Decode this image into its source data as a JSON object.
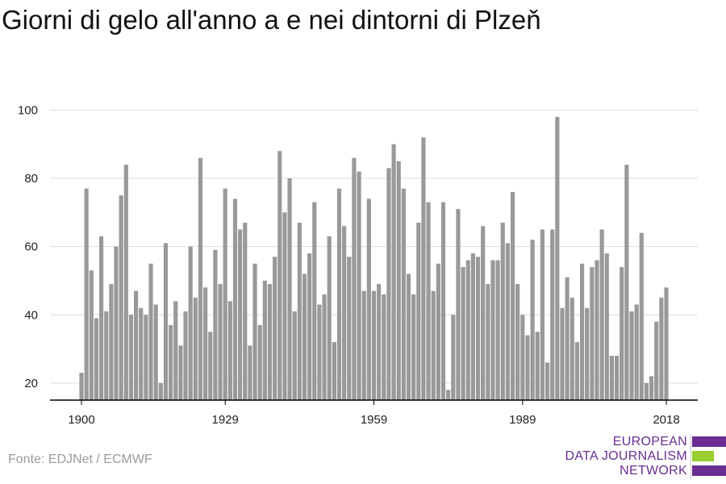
{
  "title": "Giorni di gelo all'anno a e nei dintorni di Plzeň",
  "source": "Fonte: EDJNet / ECMWF",
  "logo": {
    "line1": "EUROPEAN",
    "line2": "DATA JOURNALISM",
    "line3": "NETWORK",
    "color_primary": "#6a2d91",
    "color_accent": "#9acd32"
  },
  "colors": {
    "bar": "#999999",
    "grid": "#dddddd",
    "axis": "#000000"
  },
  "chart_data": {
    "type": "bar",
    "title": "Giorni di gelo all'anno a e nei dintorni di Plzeň",
    "xlabel": "",
    "ylabel": "",
    "x": [
      1900,
      1901,
      1902,
      1903,
      1904,
      1905,
      1906,
      1907,
      1908,
      1909,
      1910,
      1911,
      1912,
      1913,
      1914,
      1915,
      1916,
      1917,
      1918,
      1919,
      1920,
      1921,
      1922,
      1923,
      1924,
      1925,
      1926,
      1927,
      1928,
      1929,
      1930,
      1931,
      1932,
      1933,
      1934,
      1935,
      1936,
      1937,
      1938,
      1939,
      1940,
      1941,
      1942,
      1943,
      1944,
      1945,
      1946,
      1947,
      1948,
      1949,
      1950,
      1951,
      1952,
      1953,
      1954,
      1955,
      1956,
      1957,
      1958,
      1959,
      1960,
      1961,
      1962,
      1963,
      1964,
      1965,
      1966,
      1967,
      1968,
      1969,
      1970,
      1971,
      1972,
      1973,
      1974,
      1975,
      1976,
      1977,
      1978,
      1979,
      1980,
      1981,
      1982,
      1983,
      1984,
      1985,
      1986,
      1987,
      1988,
      1989,
      1990,
      1991,
      1992,
      1993,
      1994,
      1995,
      1996,
      1997,
      1998,
      1999,
      2000,
      2001,
      2002,
      2003,
      2004,
      2005,
      2006,
      2007,
      2008,
      2009,
      2010,
      2011,
      2012,
      2013,
      2014,
      2015,
      2016,
      2017,
      2018
    ],
    "values": [
      23,
      77,
      53,
      39,
      63,
      41,
      49,
      60,
      75,
      84,
      40,
      47,
      42,
      40,
      55,
      43,
      20,
      61,
      37,
      44,
      31,
      41,
      60,
      45,
      86,
      48,
      35,
      59,
      49,
      77,
      44,
      74,
      65,
      67,
      31,
      55,
      37,
      50,
      49,
      57,
      88,
      70,
      80,
      41,
      67,
      52,
      58,
      73,
      43,
      46,
      63,
      32,
      77,
      66,
      57,
      86,
      82,
      47,
      74,
      47,
      49,
      46,
      83,
      90,
      85,
      77,
      52,
      46,
      67,
      92,
      73,
      47,
      55,
      73,
      18,
      40,
      71,
      54,
      56,
      58,
      57,
      66,
      49,
      56,
      56,
      67,
      61,
      76,
      49,
      40,
      34,
      62,
      35,
      65,
      26,
      65,
      98,
      42,
      51,
      45,
      32,
      55,
      42,
      54,
      56,
      65,
      58,
      28,
      28,
      54,
      84,
      41,
      43,
      64,
      20,
      22,
      38,
      45,
      48
    ],
    "x_ticks": [
      1900,
      1929,
      1959,
      1989,
      2018
    ],
    "y_ticks": [
      20,
      40,
      60,
      80,
      100
    ],
    "ylim": [
      15,
      102
    ],
    "grid": true,
    "legend": "none"
  }
}
